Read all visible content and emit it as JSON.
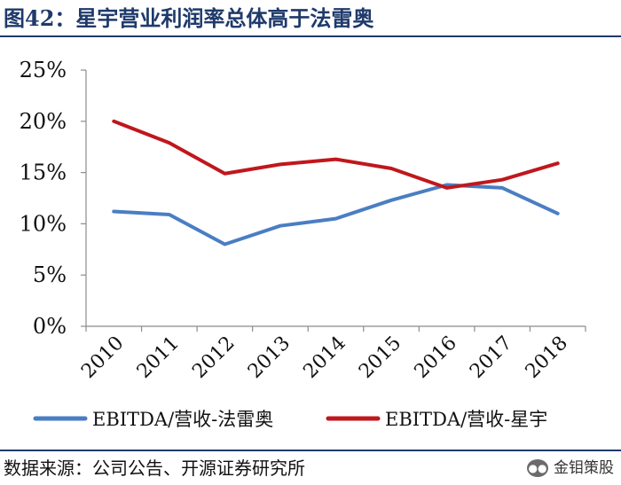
{
  "title": "图42：星宇营业利润率总体高于法雷奥",
  "source": "数据来源：公司公告、开源证券研究所",
  "watermark": "金钼策股",
  "chart_data": {
    "type": "line",
    "title": "星宇营业利润率总体高于法雷奥",
    "categories": [
      "2010",
      "2011",
      "2012",
      "2013",
      "2014",
      "2015",
      "2016",
      "2017",
      "2018"
    ],
    "ylim": [
      0,
      0.25
    ],
    "yticks": [
      "0%",
      "5%",
      "10%",
      "15%",
      "20%",
      "25%"
    ],
    "grid": false,
    "legend": "bottom",
    "series": [
      {
        "name": "EBITDA/营收-法雷奥",
        "color": "#4A7EC3",
        "values": [
          0.112,
          0.109,
          0.08,
          0.098,
          0.105,
          0.123,
          0.138,
          0.135,
          0.11
        ]
      },
      {
        "name": "EBITDA/营收-星宇",
        "color": "#C0171C",
        "values": [
          0.2,
          0.179,
          0.149,
          0.158,
          0.163,
          0.154,
          0.135,
          0.143,
          0.159
        ]
      }
    ]
  }
}
